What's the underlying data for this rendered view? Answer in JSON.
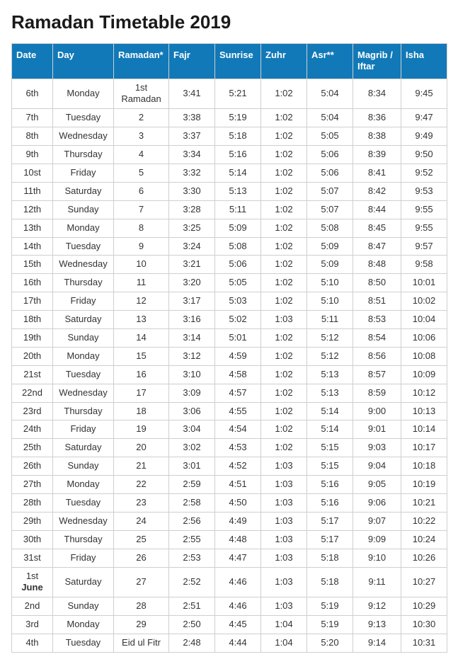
{
  "title": "Ramadan Timetable 2019",
  "header_bg": "#1179b8",
  "header_fg": "#ffffff",
  "border_color": "#cfcfcf",
  "text_color": "#333333",
  "columns": [
    "Date",
    "Day",
    "Ramadan*",
    "Fajr",
    "Sunrise",
    "Zuhr",
    "Asr**",
    "Magrib / Iftar",
    "Isha"
  ],
  "rows": [
    [
      "6th",
      "Monday",
      "1st\nRamadan",
      "3:41",
      "5:21",
      "1:02",
      "5:04",
      "8:34",
      "9:45"
    ],
    [
      "7th",
      "Tuesday",
      "2",
      "3:38",
      "5:19",
      "1:02",
      "5:04",
      "8:36",
      "9:47"
    ],
    [
      "8th",
      "Wednesday",
      "3",
      "3:37",
      "5:18",
      "1:02",
      "5:05",
      "8:38",
      "9:49"
    ],
    [
      "9th",
      "Thursday",
      "4",
      "3:34",
      "5:16",
      "1:02",
      "5:06",
      "8:39",
      "9:50"
    ],
    [
      "10st",
      "Friday",
      "5",
      "3:32",
      "5:14",
      "1:02",
      "5:06",
      "8:41",
      "9:52"
    ],
    [
      "11th",
      "Saturday",
      "6",
      "3:30",
      "5:13",
      "1:02",
      "5:07",
      "8:42",
      "9:53"
    ],
    [
      "12th",
      "Sunday",
      "7",
      "3:28",
      "5:11",
      "1:02",
      "5:07",
      "8:44",
      "9:55"
    ],
    [
      "13th",
      "Monday",
      "8",
      "3:25",
      "5:09",
      "1:02",
      "5:08",
      "8:45",
      "9:55"
    ],
    [
      "14th",
      "Tuesday",
      "9",
      "3:24",
      "5:08",
      "1:02",
      "5:09",
      "8:47",
      "9:57"
    ],
    [
      "15th",
      "Wednesday",
      "10",
      "3:21",
      "5:06",
      "1:02",
      "5:09",
      "8:48",
      "9:58"
    ],
    [
      "16th",
      "Thursday",
      "11",
      "3:20",
      "5:05",
      "1:02",
      "5:10",
      "8:50",
      "10:01"
    ],
    [
      "17th",
      "Friday",
      "12",
      "3:17",
      "5:03",
      "1:02",
      "5:10",
      "8:51",
      "10:02"
    ],
    [
      "18th",
      "Saturday",
      "13",
      "3:16",
      "5:02",
      "1:03",
      "5:11",
      "8:53",
      "10:04"
    ],
    [
      "19th",
      "Sunday",
      "14",
      "3:14",
      "5:01",
      "1:02",
      "5:12",
      "8:54",
      "10:06"
    ],
    [
      "20th",
      "Monday",
      "15",
      "3:12",
      "4:59",
      "1:02",
      "5:12",
      "8:56",
      "10:08"
    ],
    [
      "21st",
      "Tuesday",
      "16",
      "3:10",
      "4:58",
      "1:02",
      "5:13",
      "8:57",
      "10:09"
    ],
    [
      "22nd",
      "Wednesday",
      "17",
      "3:09",
      "4:57",
      "1:02",
      "5:13",
      "8:59",
      "10:12"
    ],
    [
      "23rd",
      "Thursday",
      "18",
      "3:06",
      "4:55",
      "1:02",
      "5:14",
      "9:00",
      "10:13"
    ],
    [
      "24th",
      "Friday",
      "19",
      "3:04",
      "4:54",
      "1:02",
      "5:14",
      "9:01",
      "10:14"
    ],
    [
      "25th",
      "Saturday",
      "20",
      "3:02",
      "4:53",
      "1:02",
      "5:15",
      "9:03",
      "10:17"
    ],
    [
      "26th",
      "Sunday",
      "21",
      "3:01",
      "4:52",
      "1:03",
      "5:15",
      "9:04",
      "10:18"
    ],
    [
      "27th",
      "Monday",
      "22",
      "2:59",
      "4:51",
      "1:03",
      "5:16",
      "9:05",
      "10:19"
    ],
    [
      "28th",
      "Tuesday",
      "23",
      "2:58",
      "4:50",
      "1:03",
      "5:16",
      "9:06",
      "10:21"
    ],
    [
      "29th",
      "Wednesday",
      "24",
      "2:56",
      "4:49",
      "1:03",
      "5:17",
      "9:07",
      "10:22"
    ],
    [
      "30th",
      "Thursday",
      "25",
      "2:55",
      "4:48",
      "1:03",
      "5:17",
      "9:09",
      "10:24"
    ],
    [
      "31st",
      "Friday",
      "26",
      "2:53",
      "4:47",
      "1:03",
      "5:18",
      "9:10",
      "10:26"
    ],
    [
      "1st\n**June**",
      "Saturday",
      "27",
      "2:52",
      "4:46",
      "1:03",
      "5:18",
      "9:11",
      "10:27"
    ],
    [
      "2nd",
      "Sunday",
      "28",
      "2:51",
      "4:46",
      "1:03",
      "5:19",
      "9:12",
      "10:29"
    ],
    [
      "3rd",
      "Monday",
      "29",
      "2:50",
      "4:45",
      "1:04",
      "5:19",
      "9:13",
      "10:30"
    ],
    [
      "4th",
      "Tuesday",
      "Eid ul Fitr",
      "2:48",
      "4:44",
      "1:04",
      "5:20",
      "9:14",
      "10:31"
    ]
  ]
}
